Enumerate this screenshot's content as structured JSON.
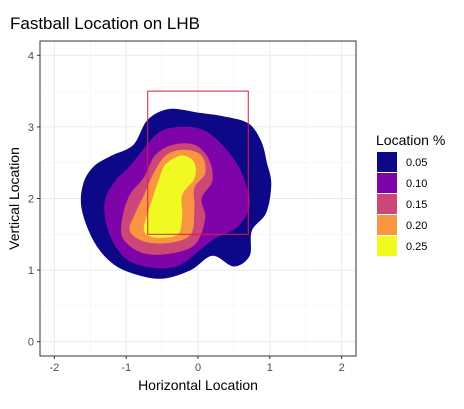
{
  "chart_data": {
    "type": "contour",
    "title": "Fastball Location on LHB",
    "xlabel": "Horizontal Location",
    "ylabel": "Vertical Location",
    "xlim": [
      -2.2,
      2.2
    ],
    "ylim": [
      -0.2,
      4.2
    ],
    "xticks": [
      -2,
      -1,
      0,
      1,
      2
    ],
    "xtick_labels": [
      "-2",
      "-1",
      "0",
      "1",
      "2"
    ],
    "yticks": [
      0,
      1,
      2,
      3,
      4
    ],
    "ytick_labels": [
      "0",
      "1",
      "2",
      "3",
      "4"
    ],
    "grid": true,
    "strike_zone": {
      "x": [
        -0.7,
        0.7
      ],
      "y": [
        1.5,
        3.5
      ],
      "color": "#dc1e3c"
    },
    "legend": {
      "title": "Location %",
      "placement": "right",
      "items": [
        {
          "label": "0.05",
          "color": "#0d0887"
        },
        {
          "label": "0.10",
          "color": "#7e03a8"
        },
        {
          "label": "0.15",
          "color": "#cc4778"
        },
        {
          "label": "0.20",
          "color": "#f89540"
        },
        {
          "label": "0.25",
          "color": "#f0f921"
        }
      ]
    },
    "levels": [
      {
        "level": 0.05,
        "color": "#0d0887",
        "polygon": [
          [
            -1.45,
            2.45
          ],
          [
            -1.2,
            2.6
          ],
          [
            -0.9,
            2.75
          ],
          [
            -0.7,
            3.1
          ],
          [
            -0.4,
            3.25
          ],
          [
            0.0,
            3.2
          ],
          [
            0.35,
            3.15
          ],
          [
            0.7,
            3.05
          ],
          [
            0.88,
            2.8
          ],
          [
            0.96,
            2.5
          ],
          [
            1.02,
            2.2
          ],
          [
            0.95,
            1.8
          ],
          [
            0.75,
            1.55
          ],
          [
            0.72,
            1.2
          ],
          [
            0.5,
            1.05
          ],
          [
            0.2,
            1.2
          ],
          [
            -0.1,
            1.0
          ],
          [
            -0.5,
            0.88
          ],
          [
            -0.9,
            0.95
          ],
          [
            -1.2,
            1.1
          ],
          [
            -1.45,
            1.4
          ],
          [
            -1.62,
            1.85
          ],
          [
            -1.6,
            2.2
          ]
        ]
      },
      {
        "level": 0.1,
        "color": "#7e03a8",
        "polygon": [
          [
            -1.15,
            2.25
          ],
          [
            -0.95,
            2.45
          ],
          [
            -0.75,
            2.7
          ],
          [
            -0.5,
            2.95
          ],
          [
            -0.1,
            3.0
          ],
          [
            0.2,
            2.88
          ],
          [
            0.5,
            2.55
          ],
          [
            0.65,
            2.25
          ],
          [
            0.72,
            1.9
          ],
          [
            0.55,
            1.6
          ],
          [
            0.25,
            1.45
          ],
          [
            0.05,
            1.3
          ],
          [
            -0.3,
            1.05
          ],
          [
            -0.75,
            1.05
          ],
          [
            -1.05,
            1.2
          ],
          [
            -1.25,
            1.55
          ],
          [
            -1.3,
            1.95
          ]
        ]
      },
      {
        "level": 0.15,
        "color": "#cc4778",
        "polygon": [
          [
            -0.95,
            2.05
          ],
          [
            -0.75,
            2.3
          ],
          [
            -0.6,
            2.6
          ],
          [
            -0.35,
            2.75
          ],
          [
            -0.05,
            2.75
          ],
          [
            0.15,
            2.55
          ],
          [
            0.2,
            2.25
          ],
          [
            0.05,
            2.0
          ],
          [
            0.1,
            1.72
          ],
          [
            -0.05,
            1.35
          ],
          [
            -0.45,
            1.22
          ],
          [
            -0.8,
            1.25
          ],
          [
            -1.05,
            1.45
          ],
          [
            -1.05,
            1.75
          ]
        ]
      },
      {
        "level": 0.2,
        "color": "#f89540",
        "polygon": [
          [
            -0.88,
            1.78
          ],
          [
            -0.75,
            2.05
          ],
          [
            -0.62,
            2.35
          ],
          [
            -0.45,
            2.6
          ],
          [
            -0.2,
            2.68
          ],
          [
            0.05,
            2.6
          ],
          [
            0.1,
            2.35
          ],
          [
            -0.05,
            2.15
          ],
          [
            -0.05,
            1.85
          ],
          [
            -0.1,
            1.5
          ],
          [
            -0.4,
            1.38
          ],
          [
            -0.75,
            1.4
          ],
          [
            -0.95,
            1.55
          ]
        ]
      },
      {
        "level": 0.25,
        "color": "#f0f921",
        "polygon": [
          [
            -0.75,
            1.62
          ],
          [
            -0.65,
            1.95
          ],
          [
            -0.55,
            2.25
          ],
          [
            -0.45,
            2.48
          ],
          [
            -0.22,
            2.6
          ],
          [
            -0.05,
            2.5
          ],
          [
            -0.05,
            2.28
          ],
          [
            -0.22,
            2.05
          ],
          [
            -0.22,
            1.75
          ],
          [
            -0.28,
            1.5
          ],
          [
            -0.55,
            1.45
          ],
          [
            -0.72,
            1.5
          ]
        ]
      }
    ]
  }
}
